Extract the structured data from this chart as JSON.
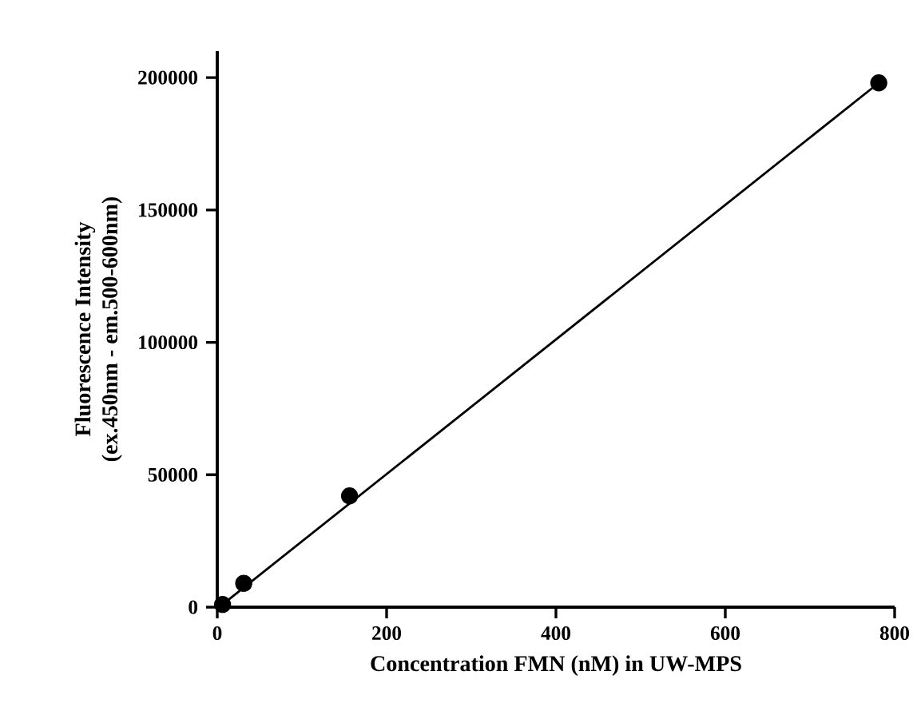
{
  "chart_data": {
    "type": "scatter",
    "xlabel": "Concentration FMN (nM) in UW-MPS",
    "ylabel": "Fluorescence Intensity\n(ex.450nm - em.500-600nm)",
    "xlim": [
      0,
      800
    ],
    "ylim": [
      0,
      210000
    ],
    "xticks": [
      0,
      200,
      400,
      600,
      800
    ],
    "yticks": [
      0,
      50000,
      100000,
      150000,
      200000
    ],
    "grid": false,
    "series": [
      {
        "color": "#000000",
        "marker": "circle",
        "x": [
          6.25,
          31.25,
          156.25,
          781.25
        ],
        "values": [
          1000,
          9000,
          42000,
          198000
        ]
      },
      {
        "type": "line",
        "color": "#000000",
        "x": [
          6.25,
          781.25
        ],
        "values": [
          1000,
          198000
        ]
      }
    ]
  }
}
